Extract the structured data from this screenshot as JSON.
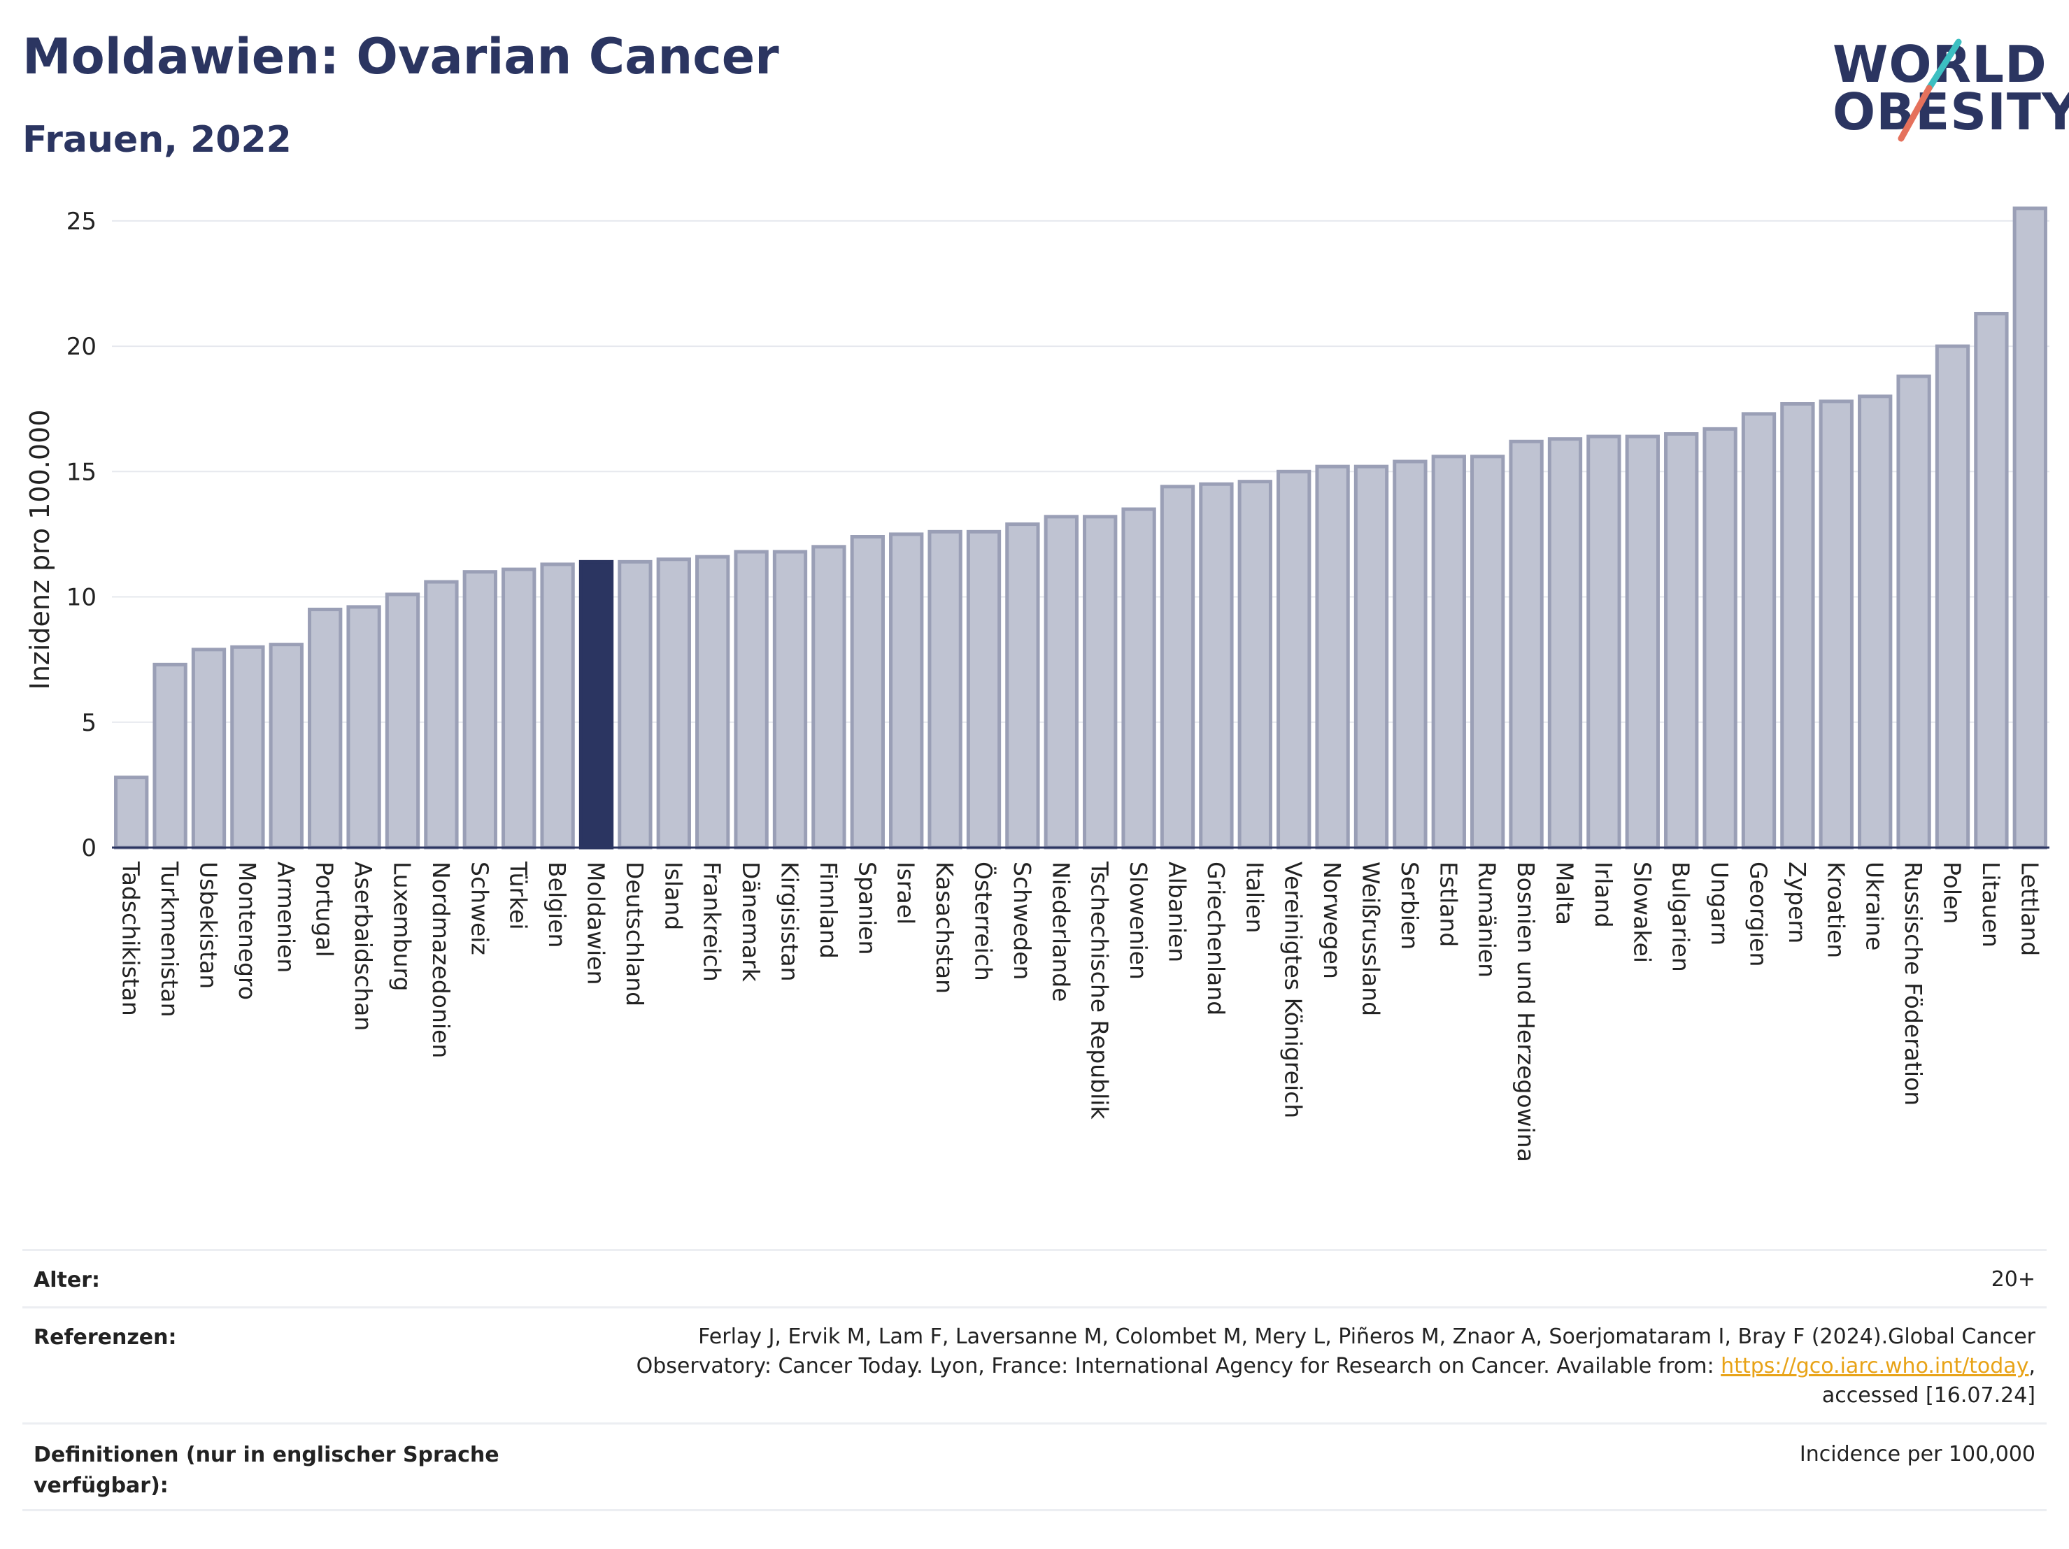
{
  "header": {
    "title": "Moldawien: Ovarian Cancer",
    "subtitle": "Frauen, 2022"
  },
  "logo": {
    "line1": "WORLD",
    "line2": "OBESITY",
    "accent_colors": [
      "#3cbfc1",
      "#e5715c"
    ]
  },
  "colors": {
    "bar": "#bfc3d2",
    "bar_stroke": "#9a9fb6",
    "highlight": "#2b3561",
    "grid": "#e6e8ee"
  },
  "chart_data": {
    "type": "bar",
    "xlabel": "",
    "ylabel": "Inzidenz pro 100.000",
    "ylim": [
      0,
      26
    ],
    "yticks": [
      0,
      5,
      10,
      15,
      20,
      25
    ],
    "grid": true,
    "highlight": "Moldawien",
    "categories": [
      "Tadschikistan",
      "Turkmenistan",
      "Usbekistan",
      "Montenegro",
      "Armenien",
      "Portugal",
      "Aserbaidschan",
      "Luxemburg",
      "Nordmazedonien",
      "Schweiz",
      "Türkei",
      "Belgien",
      "Moldawien",
      "Deutschland",
      "Island",
      "Frankreich",
      "Dänemark",
      "Kirgisistan",
      "Finnland",
      "Spanien",
      "Israel",
      "Kasachstan",
      "Österreich",
      "Schweden",
      "Niederlande",
      "Tschechische Republik",
      "Slowenien",
      "Albanien",
      "Griechenland",
      "Italien",
      "Vereinigtes Königreich",
      "Norwegen",
      "Weißrussland",
      "Serbien",
      "Estland",
      "Rumänien",
      "Bosnien und Herzegowina",
      "Malta",
      "Irland",
      "Slowakei",
      "Bulgarien",
      "Ungarn",
      "Georgien",
      "Zypern",
      "Kroatien",
      "Ukraine",
      "Russische Föderation",
      "Polen",
      "Litauen",
      "Lettland"
    ],
    "values": [
      2.8,
      7.3,
      7.9,
      8.0,
      8.1,
      9.5,
      9.6,
      10.1,
      10.6,
      11.0,
      11.1,
      11.3,
      11.4,
      11.4,
      11.5,
      11.6,
      11.8,
      11.8,
      12.0,
      12.4,
      12.5,
      12.6,
      12.6,
      12.9,
      13.2,
      13.2,
      13.5,
      14.4,
      14.5,
      14.6,
      15.0,
      15.2,
      15.2,
      15.4,
      15.6,
      15.6,
      16.2,
      16.3,
      16.4,
      16.4,
      16.5,
      16.7,
      17.3,
      17.7,
      17.8,
      18.0,
      18.8,
      20.0,
      21.3,
      25.5
    ]
  },
  "meta": {
    "age_label": "Alter:",
    "age_value": "20+",
    "ref_label": "Referenzen:",
    "ref_line1": "Ferlay J, Ervik M, Lam F, Laversanne M, Colombet M, Mery L, Piñeros M, Znaor A, Soerjomataram I, Bray F (2024).Global Cancer",
    "ref_line2": "Observatory: Cancer Today. Lyon, France: International Agency for Research on Cancer. Available from: ",
    "ref_link": "https://gco.iarc.who.int/today",
    "ref_line2_end": ",",
    "ref_line3": "accessed [16.07.24]",
    "def_label": "Definitionen (nur in englischer Sprache verfügbar):",
    "def_value": "Incidence per 100,000"
  }
}
